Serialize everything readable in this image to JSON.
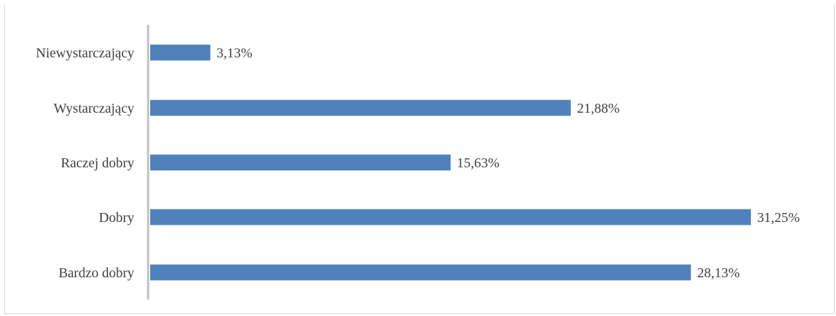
{
  "chart_data": {
    "type": "bar",
    "orientation": "horizontal",
    "title": "",
    "categories": [
      "Niewystarczający",
      "Wystarczający",
      "Raczej dobry",
      "Dobry",
      "Bardzo dobry"
    ],
    "values": [
      3.13,
      21.88,
      15.63,
      31.25,
      28.13
    ],
    "value_labels": [
      "3,13%",
      "21,88%",
      "15,63%",
      "31,25%",
      "28,13%"
    ],
    "xlabel": "",
    "ylabel": "",
    "xlim": [
      0,
      31.25
    ],
    "grid": false,
    "legend": "none",
    "bar_color": "#4f81bd",
    "axis_color": "#bfbfbf"
  }
}
